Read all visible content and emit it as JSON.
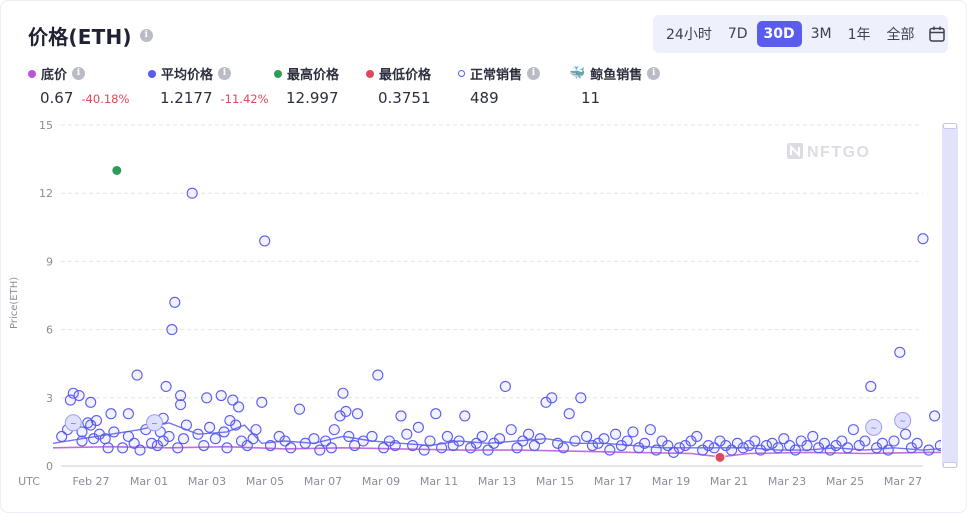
{
  "title": "价格(ETH)",
  "tabs": [
    {
      "label": "24小时",
      "active": false
    },
    {
      "label": "7D",
      "active": false
    },
    {
      "label": "30D",
      "active": true
    },
    {
      "label": "3M",
      "active": false
    },
    {
      "label": "1年",
      "active": false
    },
    {
      "label": "全部",
      "active": false
    }
  ],
  "stats": {
    "floor": {
      "label": "底价",
      "value": "0.67",
      "change": "-40.18%",
      "color": "#b955d6"
    },
    "avg": {
      "label": "平均价格",
      "value": "1.2177",
      "change": "-11.42%",
      "color": "#5a5cf0"
    },
    "high": {
      "label": "最高价格",
      "value": "12.997",
      "color": "#2e9b5c"
    },
    "low": {
      "label": "最低价格",
      "value": "0.3751",
      "color": "#e0485a"
    },
    "normal": {
      "label": "正常销售",
      "value": "489"
    },
    "whale": {
      "label": "鲸鱼销售",
      "value": "11"
    }
  },
  "watermark": "NFTGO",
  "colors": {
    "accent": "#5a5cf0",
    "floor_line": "#b955d6",
    "high": "#2e9b5c",
    "low": "#e0485a"
  },
  "chart_data": {
    "type": "scatter",
    "ylabel": "Price(ETH)",
    "xlabel": "UTC",
    "ylim": [
      0,
      15
    ],
    "yticks": [
      0,
      3,
      6,
      9,
      12,
      15
    ],
    "xlim": [
      "Feb 25",
      "Mar 28"
    ],
    "xticks": [
      "Feb 27",
      "Mar 01",
      "Mar 03",
      "Mar 05",
      "Mar 07",
      "Mar 09",
      "Mar 11",
      "Mar 13",
      "Mar 15",
      "Mar 17",
      "Mar 19",
      "Mar 21",
      "Mar 23",
      "Mar 25",
      "Mar 27"
    ],
    "grid": true,
    "series": [
      {
        "name": "最高价格",
        "kind": "point",
        "points": [
          [
            2.2,
            13.0
          ]
        ]
      },
      {
        "name": "最低价格",
        "kind": "point",
        "points": [
          [
            23.0,
            0.38
          ]
        ]
      },
      {
        "name": "正常销售",
        "kind": "scatter",
        "points": [
          [
            0.3,
            1.3
          ],
          [
            0.5,
            1.6
          ],
          [
            0.6,
            2.9
          ],
          [
            0.7,
            3.2
          ],
          [
            0.9,
            3.1
          ],
          [
            1.0,
            1.5
          ],
          [
            1.0,
            1.1
          ],
          [
            1.2,
            1.9
          ],
          [
            1.3,
            2.8
          ],
          [
            1.3,
            1.8
          ],
          [
            1.4,
            1.2
          ],
          [
            1.5,
            2.0
          ],
          [
            1.6,
            1.4
          ],
          [
            1.8,
            1.2
          ],
          [
            1.9,
            0.8
          ],
          [
            2.0,
            2.3
          ],
          [
            2.1,
            1.5
          ],
          [
            2.4,
            0.8
          ],
          [
            2.6,
            1.3
          ],
          [
            2.6,
            2.3
          ],
          [
            2.8,
            1.0
          ],
          [
            2.9,
            4.0
          ],
          [
            3.0,
            0.7
          ],
          [
            3.2,
            1.6
          ],
          [
            3.4,
            1.0
          ],
          [
            3.5,
            2.0
          ],
          [
            3.6,
            0.9
          ],
          [
            3.7,
            1.5
          ],
          [
            3.8,
            1.1
          ],
          [
            3.8,
            2.1
          ],
          [
            3.9,
            3.5
          ],
          [
            4.0,
            1.3
          ],
          [
            4.1,
            6.0
          ],
          [
            4.2,
            7.2
          ],
          [
            4.3,
            0.8
          ],
          [
            4.4,
            3.1
          ],
          [
            4.4,
            2.7
          ],
          [
            4.5,
            1.2
          ],
          [
            4.6,
            1.8
          ],
          [
            4.8,
            12.0
          ],
          [
            5.0,
            1.4
          ],
          [
            5.2,
            0.9
          ],
          [
            5.3,
            3.0
          ],
          [
            5.4,
            1.7
          ],
          [
            5.6,
            1.2
          ],
          [
            5.8,
            3.1
          ],
          [
            5.9,
            1.5
          ],
          [
            6.0,
            0.8
          ],
          [
            6.1,
            2.0
          ],
          [
            6.2,
            2.9
          ],
          [
            6.3,
            1.8
          ],
          [
            6.4,
            2.6
          ],
          [
            6.5,
            1.1
          ],
          [
            6.7,
            0.9
          ],
          [
            6.9,
            1.2
          ],
          [
            7.0,
            1.6
          ],
          [
            7.2,
            2.8
          ],
          [
            7.3,
            9.9
          ],
          [
            7.5,
            0.9
          ],
          [
            7.8,
            1.3
          ],
          [
            8.0,
            1.1
          ],
          [
            8.2,
            0.8
          ],
          [
            8.5,
            2.5
          ],
          [
            8.7,
            1.0
          ],
          [
            9.0,
            1.2
          ],
          [
            9.2,
            0.7
          ],
          [
            9.4,
            1.1
          ],
          [
            9.6,
            0.8
          ],
          [
            9.7,
            1.6
          ],
          [
            9.9,
            2.2
          ],
          [
            10.0,
            3.2
          ],
          [
            10.1,
            2.4
          ],
          [
            10.2,
            1.3
          ],
          [
            10.4,
            0.9
          ],
          [
            10.5,
            2.3
          ],
          [
            10.7,
            1.1
          ],
          [
            11.0,
            1.3
          ],
          [
            11.2,
            4.0
          ],
          [
            11.4,
            0.8
          ],
          [
            11.6,
            1.1
          ],
          [
            11.8,
            0.9
          ],
          [
            12.0,
            2.2
          ],
          [
            12.2,
            1.4
          ],
          [
            12.4,
            0.9
          ],
          [
            12.6,
            1.7
          ],
          [
            12.8,
            0.7
          ],
          [
            13.0,
            1.1
          ],
          [
            13.2,
            2.3
          ],
          [
            13.4,
            0.8
          ],
          [
            13.6,
            1.3
          ],
          [
            13.8,
            0.9
          ],
          [
            14.0,
            1.1
          ],
          [
            14.2,
            2.2
          ],
          [
            14.4,
            0.8
          ],
          [
            14.6,
            1.0
          ],
          [
            14.8,
            1.3
          ],
          [
            15.0,
            0.7
          ],
          [
            15.2,
            1.0
          ],
          [
            15.4,
            1.2
          ],
          [
            15.6,
            3.5
          ],
          [
            15.8,
            1.6
          ],
          [
            16.0,
            0.8
          ],
          [
            16.2,
            1.1
          ],
          [
            16.4,
            1.4
          ],
          [
            16.6,
            0.9
          ],
          [
            16.8,
            1.2
          ],
          [
            17.0,
            2.8
          ],
          [
            17.2,
            3.0
          ],
          [
            17.4,
            1.0
          ],
          [
            17.6,
            0.8
          ],
          [
            17.8,
            2.3
          ],
          [
            18.0,
            1.1
          ],
          [
            18.2,
            3.0
          ],
          [
            18.4,
            1.3
          ],
          [
            18.6,
            0.9
          ],
          [
            18.8,
            1.0
          ],
          [
            19.0,
            1.2
          ],
          [
            19.2,
            0.7
          ],
          [
            19.4,
            1.4
          ],
          [
            19.6,
            0.9
          ],
          [
            19.8,
            1.1
          ],
          [
            20.0,
            1.5
          ],
          [
            20.2,
            0.8
          ],
          [
            20.4,
            1.0
          ],
          [
            20.6,
            1.6
          ],
          [
            20.8,
            0.7
          ],
          [
            21.0,
            1.1
          ],
          [
            21.2,
            0.9
          ],
          [
            21.4,
            0.6
          ],
          [
            21.6,
            0.8
          ],
          [
            21.8,
            0.9
          ],
          [
            22.0,
            1.1
          ],
          [
            22.2,
            1.3
          ],
          [
            22.4,
            0.7
          ],
          [
            22.6,
            0.9
          ],
          [
            22.8,
            0.8
          ],
          [
            23.0,
            1.1
          ],
          [
            23.2,
            0.9
          ],
          [
            23.4,
            0.7
          ],
          [
            23.6,
            1.0
          ],
          [
            23.8,
            0.8
          ],
          [
            24.0,
            0.9
          ],
          [
            24.2,
            1.1
          ],
          [
            24.4,
            0.7
          ],
          [
            24.6,
            0.9
          ],
          [
            24.8,
            1.0
          ],
          [
            25.0,
            0.8
          ],
          [
            25.2,
            1.2
          ],
          [
            25.4,
            0.9
          ],
          [
            25.6,
            0.7
          ],
          [
            25.8,
            1.1
          ],
          [
            26.0,
            0.9
          ],
          [
            26.2,
            1.3
          ],
          [
            26.4,
            0.8
          ],
          [
            26.6,
            1.0
          ],
          [
            26.8,
            0.7
          ],
          [
            27.0,
            0.9
          ],
          [
            27.2,
            1.1
          ],
          [
            27.4,
            0.8
          ],
          [
            27.6,
            1.6
          ],
          [
            27.8,
            0.9
          ],
          [
            28.0,
            1.1
          ],
          [
            28.2,
            3.5
          ],
          [
            28.4,
            0.8
          ],
          [
            28.6,
            1.0
          ],
          [
            28.8,
            0.7
          ],
          [
            29.0,
            1.1
          ],
          [
            29.2,
            5.0
          ],
          [
            29.4,
            1.4
          ],
          [
            29.6,
            0.8
          ],
          [
            29.8,
            1.0
          ],
          [
            30.0,
            10.0
          ],
          [
            30.2,
            0.7
          ],
          [
            30.4,
            2.2
          ],
          [
            30.6,
            0.9
          ],
          [
            30.8,
            1.1
          ],
          [
            31.0,
            2.0
          ],
          [
            31.2,
            1.3
          ],
          [
            31.4,
            0.7
          ],
          [
            31.6,
            0.9
          ],
          [
            31.8,
            2.7
          ],
          [
            32.0,
            0.8
          ],
          [
            32.2,
            1.0
          ],
          [
            32.4,
            1.5
          ],
          [
            32.6,
            0.7
          ],
          [
            32.8,
            3.3
          ],
          [
            32.8,
            4.2
          ],
          [
            33.0,
            0.9
          ],
          [
            33.2,
            0.6
          ],
          [
            33.5,
            0.8
          ],
          [
            33.8,
            1.2
          ],
          [
            34.0,
            0.7
          ]
        ]
      },
      {
        "name": "鲸鱼销售",
        "kind": "whale",
        "points": [
          [
            0.7,
            1.9
          ],
          [
            3.5,
            1.9
          ],
          [
            28.3,
            1.7
          ],
          [
            29.3,
            2.0
          ]
        ]
      },
      {
        "name": "平均价格",
        "kind": "line",
        "points": [
          [
            0.0,
            1.0
          ],
          [
            1.0,
            1.2
          ],
          [
            2.0,
            1.4
          ],
          [
            3.0,
            1.6
          ],
          [
            4.0,
            1.9
          ],
          [
            5.0,
            1.4
          ],
          [
            6.0,
            1.5
          ],
          [
            6.6,
            1.8
          ],
          [
            7.2,
            1.0
          ],
          [
            8.0,
            1.1
          ],
          [
            9.0,
            1.0
          ],
          [
            10.0,
            1.3
          ],
          [
            11.0,
            1.1
          ],
          [
            12.0,
            1.0
          ],
          [
            13.0,
            0.9
          ],
          [
            14.0,
            1.1
          ],
          [
            15.0,
            1.0
          ],
          [
            16.0,
            1.1
          ],
          [
            17.0,
            1.2
          ],
          [
            18.0,
            1.0
          ],
          [
            19.0,
            1.0
          ],
          [
            20.0,
            0.9
          ],
          [
            21.0,
            0.8
          ],
          [
            22.0,
            0.8
          ],
          [
            23.0,
            0.8
          ],
          [
            24.0,
            0.8
          ],
          [
            25.0,
            0.7
          ],
          [
            26.0,
            0.7
          ],
          [
            27.0,
            0.8
          ],
          [
            28.0,
            0.7
          ],
          [
            29.0,
            0.8
          ],
          [
            30.0,
            0.7
          ],
          [
            31.0,
            0.8
          ],
          [
            32.0,
            1.5
          ],
          [
            32.6,
            0.9
          ],
          [
            33.3,
            0.6
          ],
          [
            34.0,
            0.6
          ]
        ]
      },
      {
        "name": "底价",
        "kind": "line",
        "points": [
          [
            0.0,
            0.8
          ],
          [
            2.0,
            0.85
          ],
          [
            4.0,
            0.8
          ],
          [
            6.0,
            0.85
          ],
          [
            8.0,
            0.75
          ],
          [
            10.0,
            0.8
          ],
          [
            12.0,
            0.75
          ],
          [
            14.0,
            0.7
          ],
          [
            16.0,
            0.7
          ],
          [
            18.0,
            0.65
          ],
          [
            20.0,
            0.6
          ],
          [
            22.0,
            0.55
          ],
          [
            23.0,
            0.4
          ],
          [
            24.0,
            0.55
          ],
          [
            26.0,
            0.6
          ],
          [
            28.0,
            0.55
          ],
          [
            30.0,
            0.6
          ],
          [
            32.0,
            0.6
          ],
          [
            34.0,
            0.6
          ]
        ]
      }
    ]
  }
}
